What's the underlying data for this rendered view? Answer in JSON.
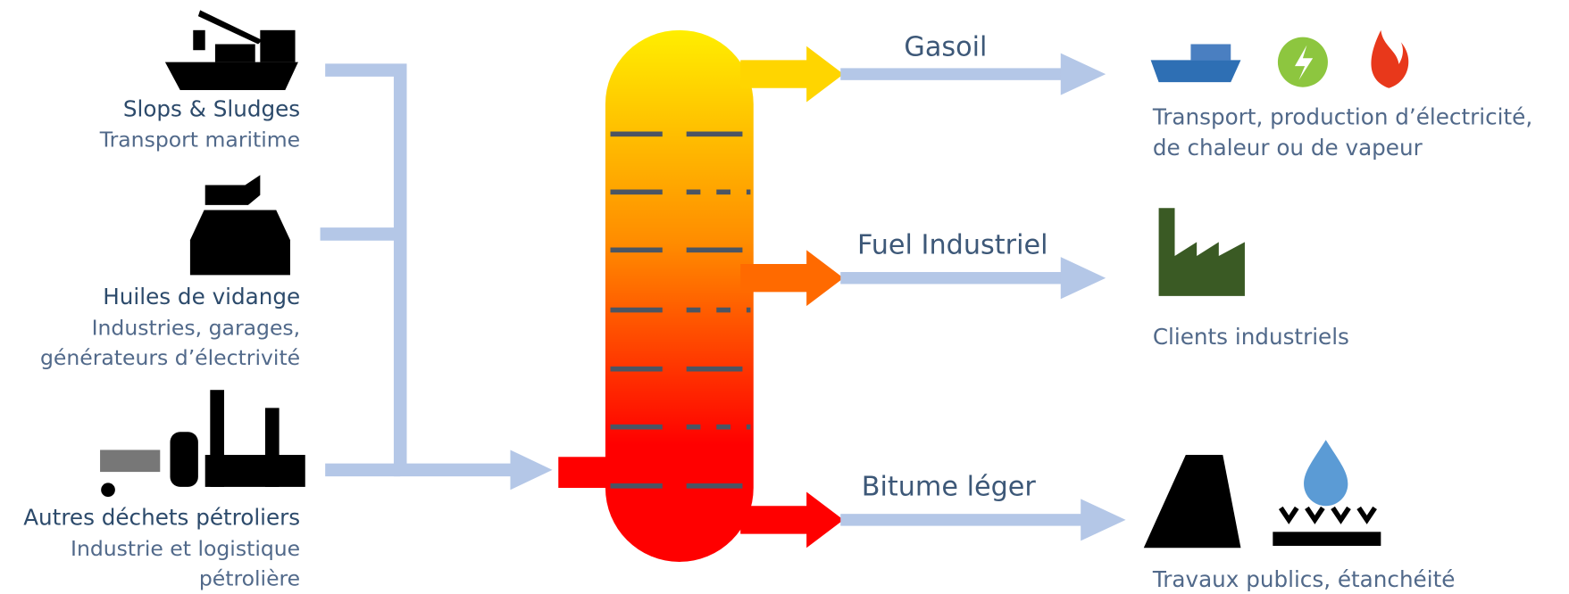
{
  "sources": [
    {
      "title": "Slops & Sludges",
      "lines": [
        "Transport maritime"
      ]
    },
    {
      "title": "Huiles de vidange",
      "lines": [
        "Industries, garages,",
        "générateurs d’électrivité"
      ]
    },
    {
      "title": "Autres déchets pétroliers",
      "lines": [
        "Industrie et logistique",
        "pétrolière"
      ]
    }
  ],
  "products": [
    "Gasoil",
    "Fuel Industriel",
    "Bitume léger"
  ],
  "uses": [
    {
      "lines": [
        "Transport, production d’électricité,",
        "de chaleur ou de vapeur"
      ]
    },
    {
      "lines": [
        "Clients industriels"
      ]
    },
    {
      "lines": [
        "Travaux publics, étanchéité"
      ]
    }
  ]
}
